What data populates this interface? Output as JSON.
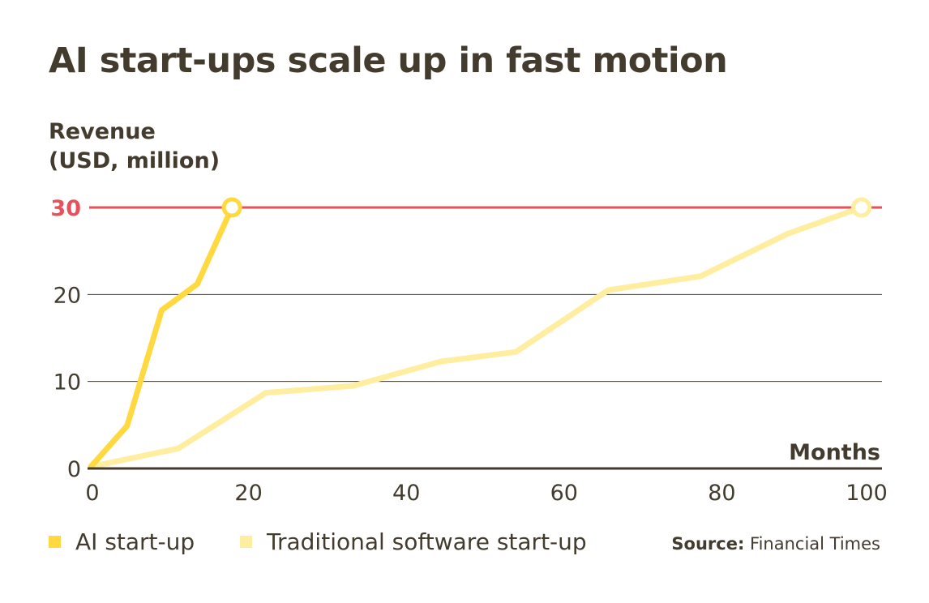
{
  "chart_data": {
    "type": "line",
    "title": "AI start-ups scale up in fast motion",
    "ylabel": "Revenue (USD, million)",
    "ylabel_lines": [
      "Revenue",
      "(USD, million)"
    ],
    "xlabel": "Months",
    "xlim": [
      0,
      100
    ],
    "ylim": [
      0,
      30
    ],
    "xticks": [
      "0",
      "20",
      "40",
      "60",
      "80",
      "100"
    ],
    "yticks": [
      "0",
      "10",
      "20",
      "30"
    ],
    "highlight_line": {
      "value": 30,
      "label": "30",
      "color": "#E8505B"
    },
    "grid": true,
    "legend_position": "bottom-left",
    "series": [
      {
        "name": "AI start-up",
        "color": "#FFD93F",
        "x": [
          0,
          4.6,
          9,
          13.5,
          17.9
        ],
        "y": [
          0.2,
          4.9,
          18.2,
          21.2,
          30
        ]
      },
      {
        "name": "Traditional software start-up",
        "color": "#FFEEA0",
        "x": [
          0,
          11.1,
          22.2,
          33.3,
          44.4,
          53.9,
          65.6,
          77.3,
          88.4,
          97.7
        ],
        "y": [
          0.2,
          2.3,
          8.7,
          9.5,
          12.3,
          13.4,
          20.5,
          22.1,
          27,
          30
        ]
      }
    ]
  },
  "source": {
    "label": "Source:",
    "text": "Financial Times"
  }
}
